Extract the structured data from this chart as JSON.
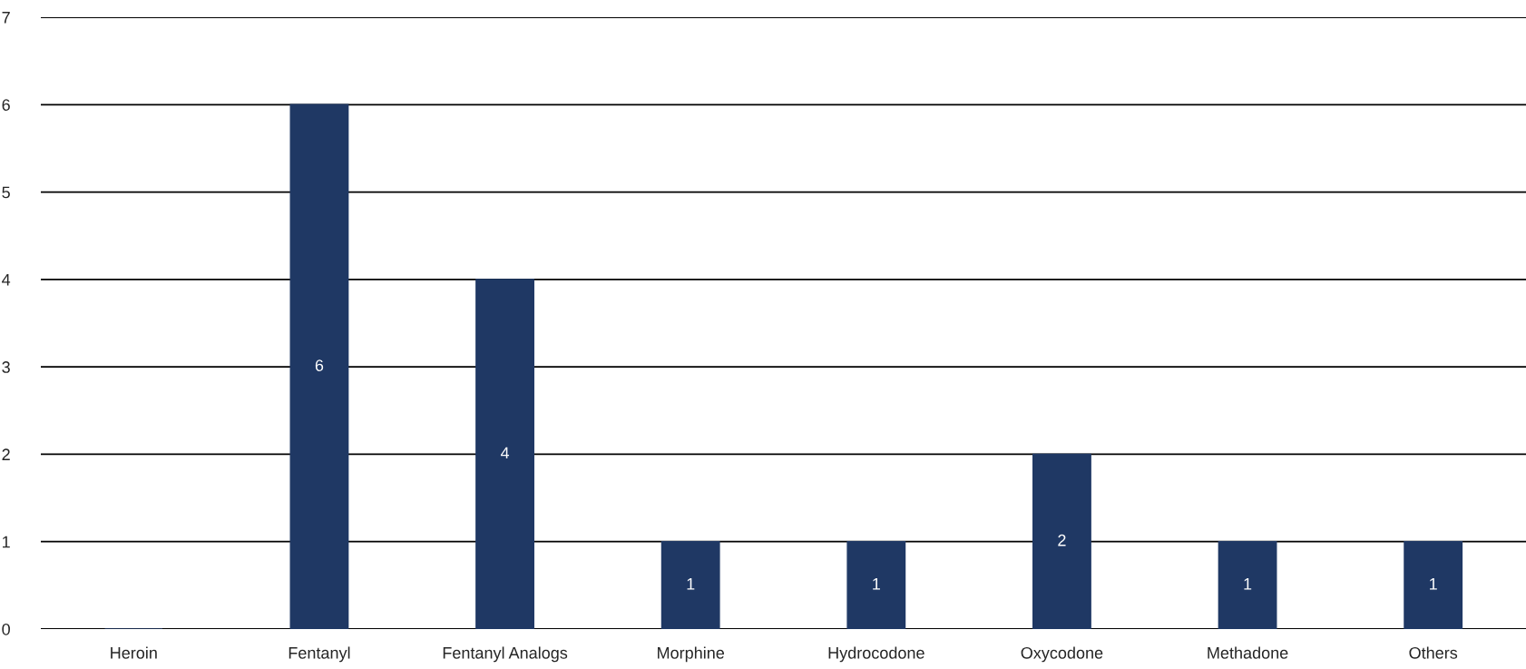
{
  "chart_data": {
    "type": "bar",
    "categories": [
      "Heroin",
      "Fentanyl",
      "Fentanyl Analogs",
      "Morphine",
      "Hydrocodone",
      "Oxycodone",
      "Methadone",
      "Others"
    ],
    "values": [
      0,
      6,
      4,
      1,
      1,
      2,
      1,
      1
    ],
    "value_labels": [
      null,
      "6",
      "4",
      "1",
      "1",
      "2",
      "1",
      "1"
    ],
    "color": "#1f3864",
    "ylim": [
      0,
      7
    ],
    "yticks": [
      0,
      1,
      2,
      3,
      4,
      5,
      6,
      7
    ],
    "grid": "y"
  }
}
